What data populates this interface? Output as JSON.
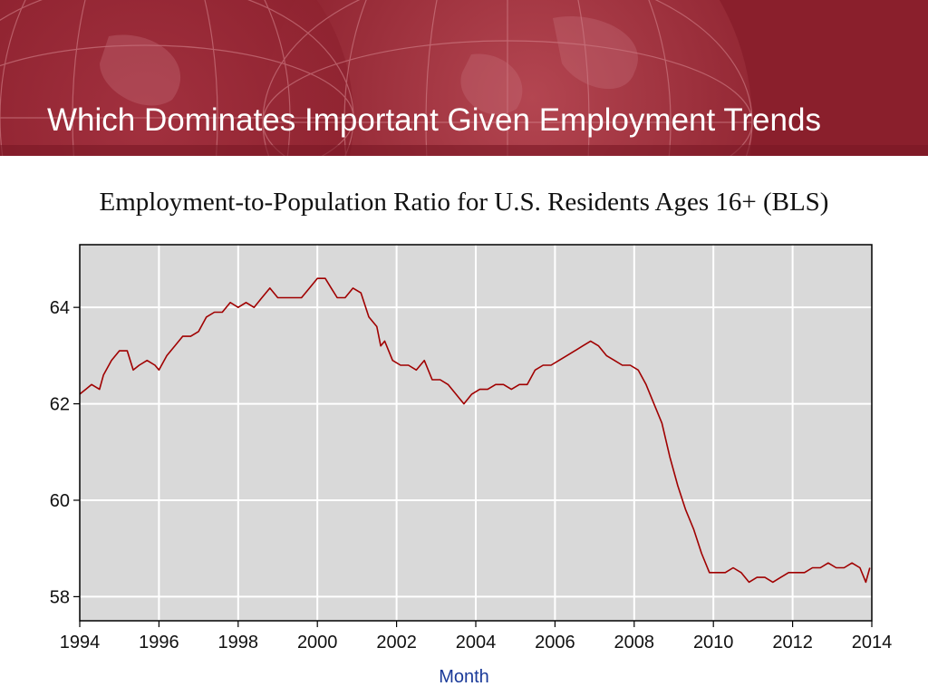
{
  "slide": {
    "title": "Which Dominates Important Given Employment Trends"
  },
  "colors": {
    "banner": "#8a1f2c",
    "plot_background": "#d9d9d9",
    "series_line": "#a00000",
    "xlabel": "#1a3a99"
  },
  "chart_data": {
    "type": "line",
    "title": "Employment-to-Population Ratio for U.S. Residents Ages 16+ (BLS)",
    "xlabel": "Month",
    "ylabel": "",
    "xlim": [
      1994,
      2014
    ],
    "ylim": [
      57.5,
      65.3
    ],
    "x_ticks": [
      "1994",
      "1996",
      "1998",
      "2000",
      "2002",
      "2004",
      "2006",
      "2008",
      "2010",
      "2012",
      "2014"
    ],
    "y_ticks": [
      "58",
      "60",
      "62",
      "64"
    ],
    "grid": true,
    "series": [
      {
        "x": [
          1994.0,
          1994.15,
          1994.3,
          1994.5,
          1994.6,
          1994.8,
          1995.0,
          1995.2,
          1995.35,
          1995.5,
          1995.7,
          1995.9,
          1996.0,
          1996.2,
          1996.4,
          1996.6,
          1996.8,
          1997.0,
          1997.2,
          1997.4,
          1997.6,
          1997.8,
          1998.0,
          1998.2,
          1998.4,
          1998.6,
          1998.8,
          1999.0,
          1999.2,
          1999.4,
          1999.6,
          1999.8,
          2000.0,
          2000.2,
          2000.35,
          2000.5,
          2000.7,
          2000.9,
          2001.1,
          2001.3,
          2001.5,
          2001.6,
          2001.7,
          2001.9,
          2002.1,
          2002.3,
          2002.5,
          2002.7,
          2002.9,
          2003.1,
          2003.3,
          2003.5,
          2003.7,
          2003.9,
          2004.1,
          2004.3,
          2004.5,
          2004.7,
          2004.9,
          2005.1,
          2005.3,
          2005.5,
          2005.7,
          2005.9,
          2006.1,
          2006.3,
          2006.5,
          2006.7,
          2006.9,
          2007.1,
          2007.3,
          2007.5,
          2007.7,
          2007.9,
          2008.1,
          2008.3,
          2008.5,
          2008.7,
          2008.9,
          2009.1,
          2009.3,
          2009.5,
          2009.7,
          2009.9,
          2010.1,
          2010.3,
          2010.5,
          2010.7,
          2010.9,
          2011.1,
          2011.3,
          2011.5,
          2011.7,
          2011.9,
          2012.1,
          2012.3,
          2012.5,
          2012.7,
          2012.9,
          2013.1,
          2013.3,
          2013.5,
          2013.7,
          2013.85,
          2013.95
        ],
        "values": [
          62.2,
          62.3,
          62.4,
          62.3,
          62.6,
          62.9,
          63.1,
          63.1,
          62.7,
          62.8,
          62.9,
          62.8,
          62.7,
          63.0,
          63.2,
          63.4,
          63.4,
          63.5,
          63.8,
          63.9,
          63.9,
          64.1,
          64.0,
          64.1,
          64.0,
          64.2,
          64.4,
          64.2,
          64.2,
          64.2,
          64.2,
          64.4,
          64.6,
          64.6,
          64.4,
          64.2,
          64.2,
          64.4,
          64.3,
          63.8,
          63.6,
          63.2,
          63.3,
          62.9,
          62.8,
          62.8,
          62.7,
          62.9,
          62.5,
          62.5,
          62.4,
          62.2,
          62.0,
          62.2,
          62.3,
          62.3,
          62.4,
          62.4,
          62.3,
          62.4,
          62.4,
          62.7,
          62.8,
          62.8,
          62.9,
          63.0,
          63.1,
          63.2,
          63.3,
          63.2,
          63.0,
          62.9,
          62.8,
          62.8,
          62.7,
          62.4,
          62.0,
          61.6,
          60.9,
          60.3,
          59.8,
          59.4,
          58.9,
          58.5,
          58.5,
          58.5,
          58.6,
          58.5,
          58.3,
          58.4,
          58.4,
          58.3,
          58.4,
          58.5,
          58.5,
          58.5,
          58.6,
          58.6,
          58.7,
          58.6,
          58.6,
          58.7,
          58.6,
          58.3,
          58.6
        ]
      }
    ]
  }
}
